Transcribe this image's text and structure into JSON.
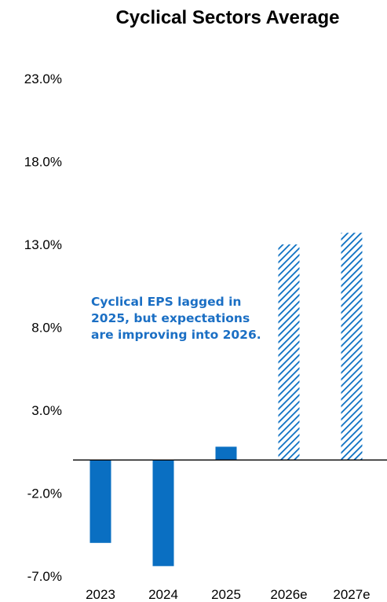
{
  "chart_data": {
    "type": "bar",
    "title": "Cyclical Sectors Average",
    "xlabel": "",
    "ylabel": "",
    "categories": [
      "2023",
      "2024",
      "2025",
      "2026e",
      "2027e"
    ],
    "values": [
      -5.0,
      -6.4,
      0.8,
      13.0,
      13.7
    ],
    "bar_styles": [
      "solid",
      "solid",
      "solid",
      "hatched",
      "hatched"
    ],
    "ylim": [
      -7.0,
      23.0
    ],
    "yticks": [
      "23.0%",
      "18.0%",
      "13.0%",
      "8.0%",
      "3.0%",
      "-2.0%",
      "-7.0%"
    ],
    "ytick_values": [
      23.0,
      18.0,
      13.0,
      8.0,
      3.0,
      -2.0,
      -7.0
    ],
    "grid": false,
    "annotation": {
      "lines": [
        "Cyclical EPS lagged in",
        "2025, but expectations",
        "are improving into 2026."
      ]
    },
    "colors": {
      "bar": "#0a6fc2",
      "text_accent": "#1b6fc4",
      "axis": "#000000"
    }
  }
}
